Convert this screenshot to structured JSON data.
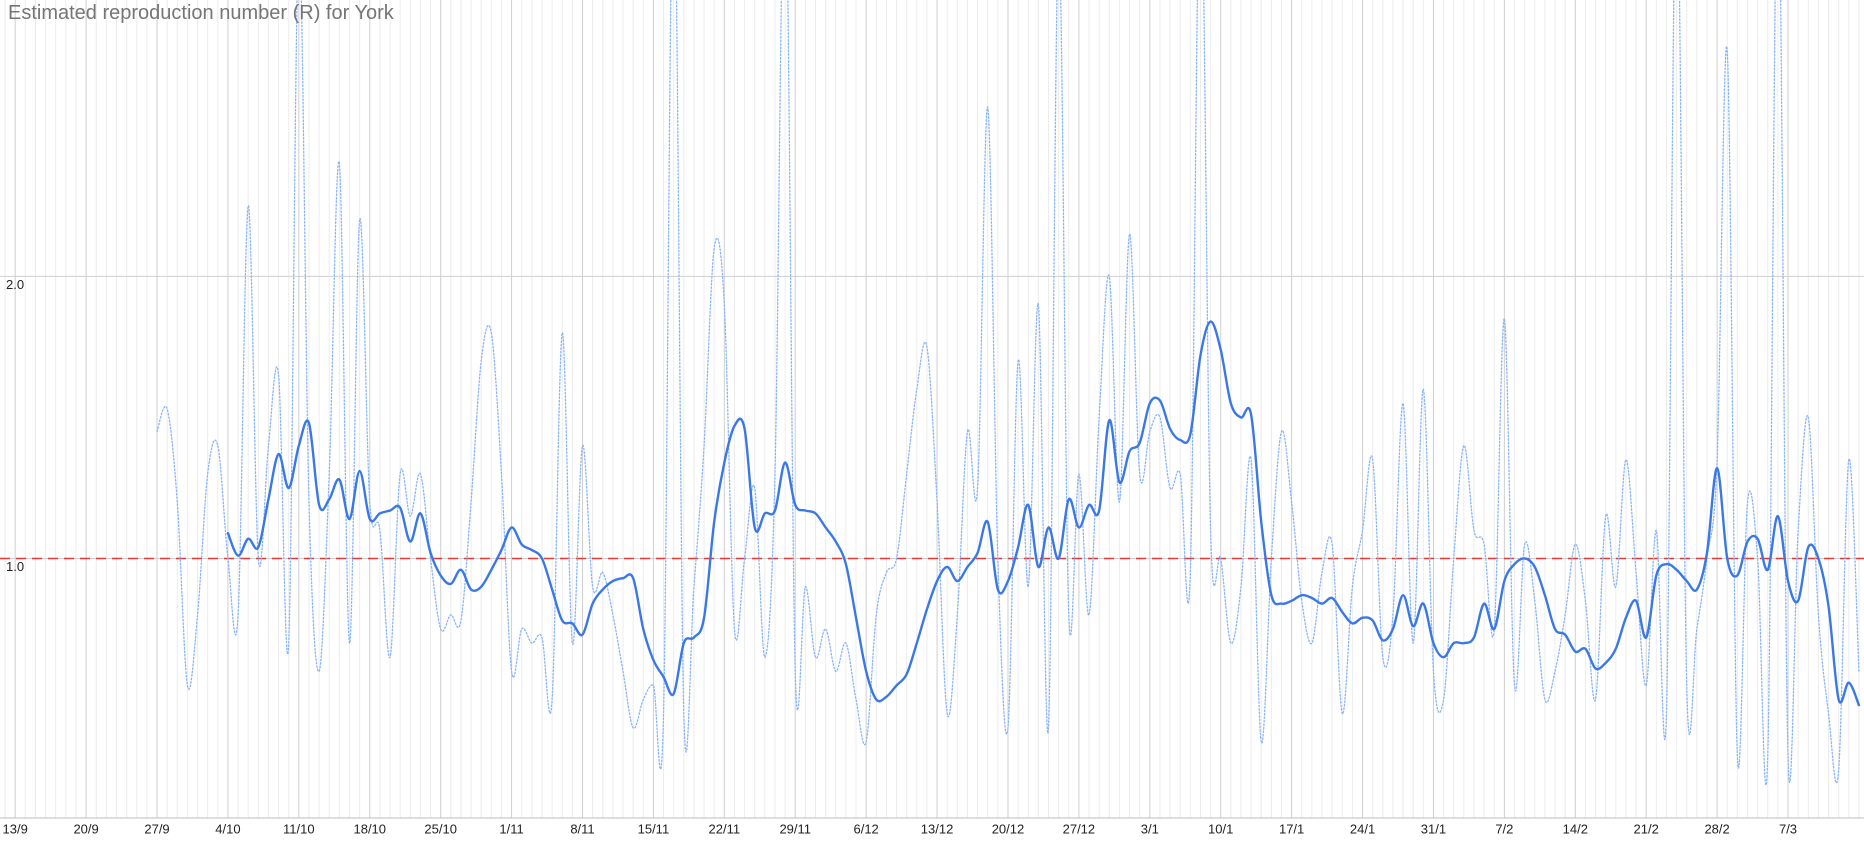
{
  "chart_data": {
    "type": "line",
    "title": "Estimated reproduction number (R) for York",
    "categories": [
      null,
      "13/9",
      null,
      null,
      null,
      null,
      null,
      null,
      "20/9",
      null,
      null,
      null,
      null,
      null,
      null,
      "27/9",
      null,
      null,
      null,
      null,
      null,
      null,
      "4/10",
      null,
      null,
      null,
      null,
      null,
      null,
      "11/10",
      null,
      null,
      null,
      null,
      null,
      null,
      "18/10",
      null,
      null,
      null,
      null,
      null,
      null,
      "25/10",
      null,
      null,
      null,
      null,
      null,
      null,
      "1/11",
      null,
      null,
      null,
      null,
      null,
      null,
      "8/11",
      null,
      null,
      null,
      null,
      null,
      null,
      "15/11",
      null,
      null,
      null,
      null,
      null,
      null,
      "22/11",
      null,
      null,
      null,
      null,
      null,
      null,
      "29/11",
      null,
      null,
      null,
      null,
      null,
      null,
      "6/12",
      null,
      null,
      null,
      null,
      null,
      null,
      "13/12",
      null,
      null,
      null,
      null,
      null,
      null,
      "20/12",
      null,
      null,
      null,
      null,
      null,
      null,
      "27/12",
      null,
      null,
      null,
      null,
      null,
      null,
      "3/1",
      null,
      null,
      null,
      null,
      null,
      null,
      "10/1",
      null,
      null,
      null,
      null,
      null,
      null,
      "17/1",
      null,
      null,
      null,
      null,
      null,
      null,
      "24/1",
      null,
      null,
      null,
      null,
      null,
      null,
      "31/1",
      null,
      null,
      null,
      null,
      null,
      null,
      "7/2",
      null,
      null,
      null,
      null,
      null,
      null,
      "14/2",
      null,
      null,
      null,
      null,
      null,
      null,
      "21/2",
      null,
      null,
      null,
      null,
      null,
      null,
      "28/2",
      null,
      null,
      null,
      null,
      null,
      null,
      "7/3",
      null,
      null,
      null,
      null,
      null,
      null,
      null
    ],
    "series": [
      {
        "color": "#8ab4f8",
        "dash": "dotted",
        "values": [
          null,
          null,
          null,
          null,
          null,
          null,
          null,
          null,
          null,
          null,
          null,
          null,
          null,
          null,
          null,
          1.45,
          1.53,
          1.2,
          0.55,
          0.8,
          1.3,
          1.4,
          1.0,
          0.8,
          2.25,
          1.0,
          1.4,
          1.65,
          0.7,
          3.2,
          1.2,
          0.6,
          1.3,
          2.4,
          0.7,
          2.2,
          1.2,
          1.1,
          0.65,
          1.3,
          1.15,
          1.3,
          1.0,
          0.75,
          0.8,
          0.78,
          1.2,
          1.7,
          1.8,
          1.3,
          0.6,
          0.75,
          0.7,
          0.72,
          0.5,
          1.8,
          0.7,
          1.4,
          0.9,
          0.95,
          0.8,
          0.6,
          0.4,
          0.5,
          0.55,
          0.45,
          3.5,
          0.45,
          0.9,
          1.4,
          2.1,
          1.9,
          0.75,
          1.0,
          1.25,
          0.65,
          1.3,
          3.5,
          0.6,
          0.9,
          0.65,
          0.75,
          0.6,
          0.7,
          0.5,
          0.35,
          0.8,
          0.95,
          1.0,
          1.3,
          1.6,
          1.75,
          1.2,
          0.45,
          0.8,
          1.45,
          1.25,
          2.6,
          1.0,
          0.4,
          1.7,
          0.9,
          1.9,
          0.4,
          3.2,
          0.8,
          1.3,
          0.8,
          1.5,
          2.0,
          1.2,
          2.15,
          1.3,
          1.45,
          1.5,
          1.25,
          1.3,
          0.95,
          3.5,
          1.1,
          1.0,
          0.7,
          0.9,
          1.35,
          0.35,
          1.0,
          1.45,
          1.2,
          0.85,
          0.7,
          0.95,
          1.05,
          0.45,
          0.9,
          1.1,
          1.35,
          0.65,
          0.8,
          1.55,
          0.7,
          1.6,
          0.6,
          0.5,
          1.0,
          1.4,
          1.1,
          1.05,
          0.75,
          1.85,
          0.55,
          1.05,
          0.85,
          0.5,
          0.6,
          0.8,
          1.05,
          0.85,
          0.5,
          1.15,
          0.9,
          1.35,
          0.95,
          0.55,
          1.1,
          0.45,
          3.5,
          0.55,
          0.75,
          1.0,
          1.35,
          2.8,
          0.3,
          1.2,
          1.0,
          0.3,
          3.5,
          0.3,
          1.1,
          1.5,
          0.8,
          0.45,
          0.25,
          1.35,
          0.6
        ]
      },
      {
        "color": "#3b78e7",
        "dash": "solid",
        "values": [
          null,
          null,
          null,
          null,
          null,
          null,
          null,
          null,
          null,
          null,
          null,
          null,
          null,
          null,
          null,
          null,
          null,
          null,
          null,
          null,
          null,
          null,
          1.09,
          1.01,
          1.07,
          1.04,
          1.21,
          1.37,
          1.25,
          1.4,
          1.48,
          1.19,
          1.21,
          1.28,
          1.14,
          1.31,
          1.14,
          1.16,
          1.17,
          1.18,
          1.06,
          1.16,
          1.02,
          0.94,
          0.91,
          0.96,
          0.89,
          0.9,
          0.96,
          1.03,
          1.11,
          1.05,
          1.03,
          1.0,
          0.89,
          0.78,
          0.77,
          0.73,
          0.84,
          0.89,
          0.92,
          0.93,
          0.93,
          0.75,
          0.64,
          0.58,
          0.52,
          0.7,
          0.72,
          0.79,
          1.13,
          1.34,
          1.47,
          1.46,
          1.11,
          1.16,
          1.17,
          1.34,
          1.19,
          1.17,
          1.16,
          1.11,
          1.06,
          0.98,
          0.79,
          0.6,
          0.5,
          0.51,
          0.55,
          0.59,
          0.7,
          0.82,
          0.92,
          0.97,
          0.92,
          0.97,
          1.02,
          1.13,
          0.89,
          0.92,
          1.04,
          1.19,
          0.97,
          1.11,
          1.0,
          1.21,
          1.11,
          1.19,
          1.17,
          1.49,
          1.27,
          1.38,
          1.41,
          1.55,
          1.56,
          1.46,
          1.42,
          1.44,
          1.72,
          1.84,
          1.74,
          1.55,
          1.5,
          1.51,
          1.13,
          0.87,
          0.84,
          0.85,
          0.87,
          0.86,
          0.84,
          0.86,
          0.81,
          0.77,
          0.79,
          0.78,
          0.71,
          0.75,
          0.87,
          0.76,
          0.84,
          0.7,
          0.65,
          0.7,
          0.7,
          0.72,
          0.84,
          0.75,
          0.92,
          0.98,
          1.0,
          0.97,
          0.87,
          0.75,
          0.73,
          0.67,
          0.68,
          0.61,
          0.63,
          0.68,
          0.79,
          0.85,
          0.72,
          0.94,
          0.98,
          0.96,
          0.92,
          0.89,
          1.02,
          1.32,
          1.0,
          0.94,
          1.06,
          1.07,
          0.96,
          1.15,
          0.92,
          0.85,
          1.04,
          1.0,
          0.83,
          0.5,
          0.56,
          0.48
        ]
      }
    ],
    "reference_line": {
      "value": 1,
      "color": "#e53935"
    },
    "ylim": [
      0.08,
      2.98
    ],
    "yticks": [
      {
        "value": 1,
        "label": "1.0"
      },
      {
        "value": 2,
        "label": "2.0"
      }
    ],
    "grid": true
  }
}
